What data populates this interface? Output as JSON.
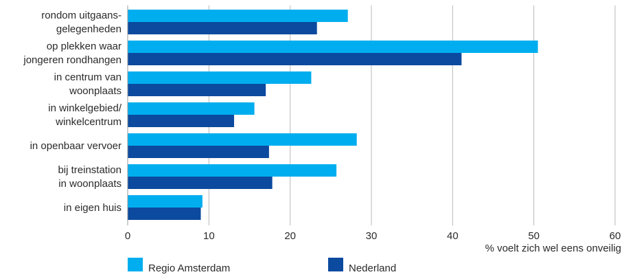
{
  "chart_data": {
    "type": "bar",
    "orientation": "horizontal",
    "categories": [
      [
        "rondom uitgaans-",
        "gelegenheden"
      ],
      [
        "op plekken waar",
        "jongeren rondhangen"
      ],
      [
        "in centrum van",
        "woonplaats"
      ],
      [
        "in winkelgebied/",
        "winkelcentrum"
      ],
      [
        "in openbaar vervoer"
      ],
      [
        "bij treinstation",
        "in woonplaats"
      ],
      [
        "in eigen huis"
      ]
    ],
    "series": [
      {
        "name": "Regio Amsterdam",
        "color": "#00AEEF",
        "values": [
          27.1,
          50.5,
          22.6,
          15.6,
          28.2,
          25.7,
          9.2
        ]
      },
      {
        "name": "Nederland",
        "color": "#0B4A9E",
        "values": [
          23.3,
          41.1,
          17.0,
          13.1,
          17.4,
          17.8,
          9.0
        ]
      }
    ],
    "xlim": [
      0,
      60
    ],
    "xticks": [
      "0",
      "10",
      "20",
      "30",
      "40",
      "50",
      "60"
    ],
    "xlabel": "% voelt zich wel eens onveilig",
    "ylabel": "",
    "title": "",
    "grid": true,
    "legend_position": "bottom"
  }
}
